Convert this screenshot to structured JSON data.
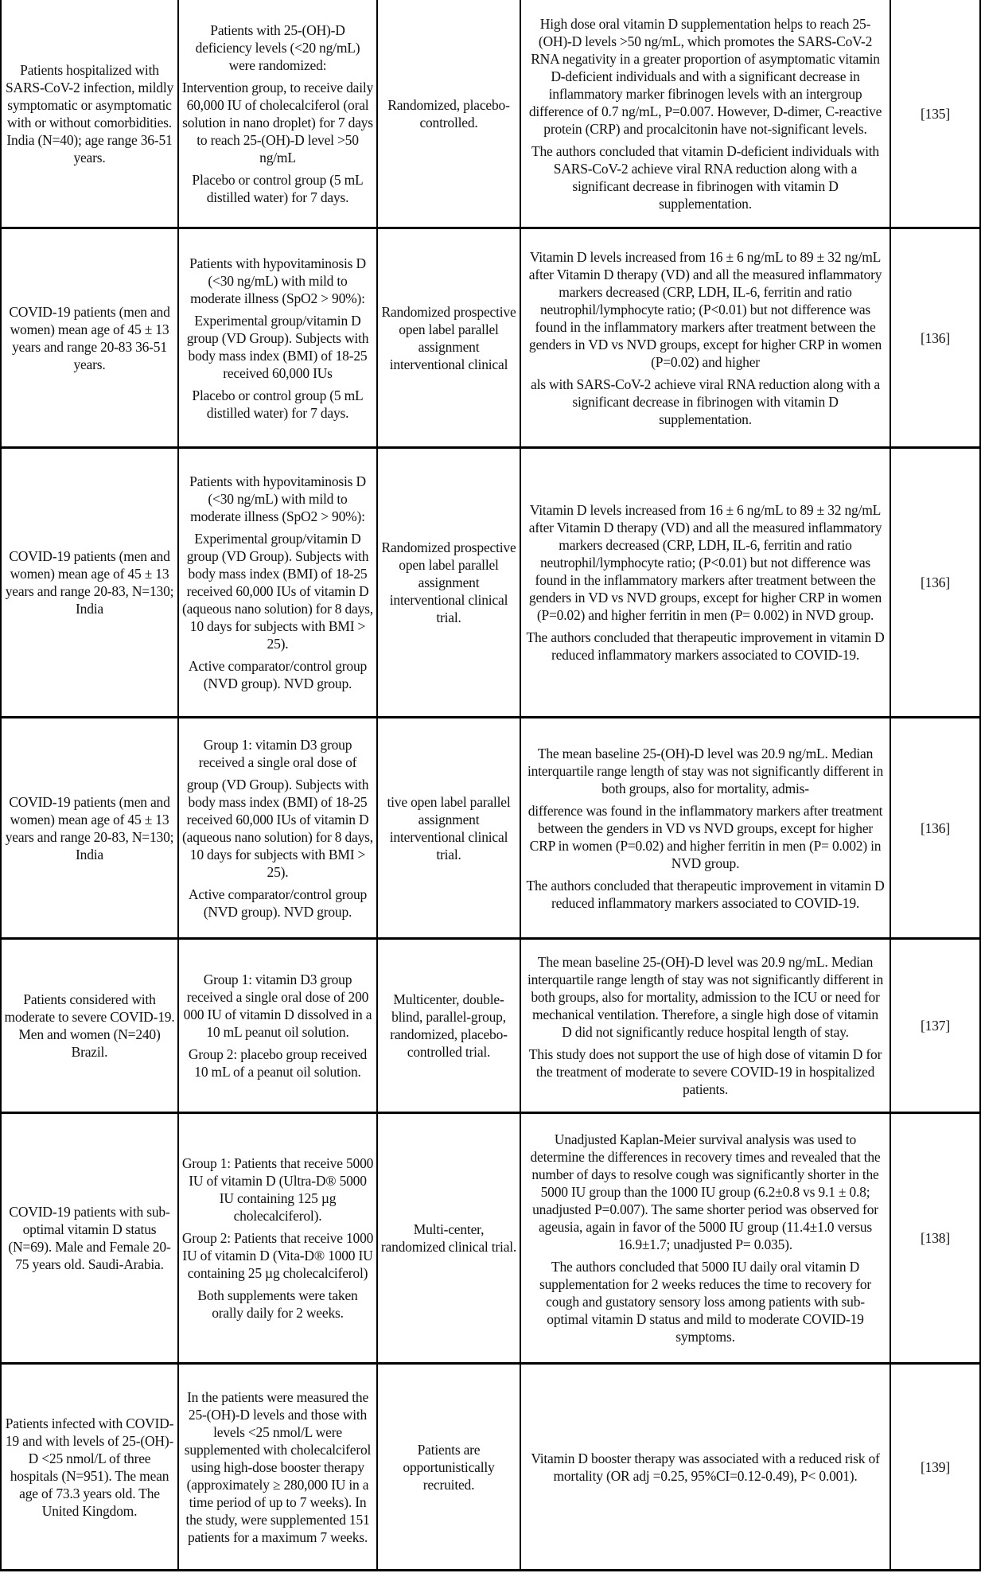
{
  "rows": [
    {
      "population": "Patients hospitalized with SARS-CoV-2 infection, mildly symptomatic or asymptomatic with or without comorbidities. India (N=40); age range 36-51 years.",
      "intervention": [
        "Patients with 25-(OH)-D deficiency levels (<20 ng/mL) were randomized:",
        "Intervention group, to receive daily 60,000 IU of cholecalciferol (oral solution in nano droplet) for 7 days to reach 25-(OH)-D level >50 ng/mL",
        "Placebo or control group (5 mL distilled water) for 7 days."
      ],
      "design": "Randomized, placebo-controlled.",
      "results": [
        "High dose oral vitamin D supplementation helps to reach 25-(OH)-D levels >50 ng/mL, which promotes the SARS-CoV-2 RNA negativity in a greater proportion of asymptomatic vitamin D-deficient individuals and with a significant decrease in inflammatory marker fibrinogen levels with an intergroup difference of 0.7 ng/mL, P=0.007. However, D-dimer, C-reactive protein (CRP) and procalcitonin have not-significant levels.",
        "The authors concluded that vitamin D-deficient individuals with SARS-CoV-2 achieve viral RNA reduction along with a significant decrease in fibrinogen with vitamin D supplementation."
      ],
      "ref": "[135]"
    },
    {
      "population": "COVID-19 patients (men and women) mean age of 45 ± 13 years and range 20-83 36-51 years.",
      "intervention": [
        "Patients with hypovitaminosis D (<30 ng/mL) with mild to moderate illness (SpO2 > 90%):",
        "Experimental group/vitamin D group (VD Group). Subjects with body mass index (BMI) of 18-25 received 60,000 IUs",
        "Placebo or control group (5 mL distilled water) for 7 days."
      ],
      "design": "Randomized prospective open label parallel assignment interventional clinical",
      "results": [
        "Vitamin D levels increased from 16 ± 6 ng/mL to 89 ± 32 ng/mL after Vitamin D therapy (VD) and all the measured inflammatory markers decreased (CRP, LDH, IL-6, ferritin and ratio neutrophil/lymphocyte ratio; (P<0.01) but not difference was found in the inflammatory markers after treatment between the genders in VD vs NVD groups, except for higher CRP in women (P=0.02) and higher",
        "als with SARS-CoV-2 achieve viral RNA reduction along with a significant decrease in fibrinogen with vitamin D supplementation."
      ],
      "ref": "[136]"
    },
    {
      "population": "COVID-19 patients (men and women) mean age of 45 ± 13 years and range 20-83, N=130; India",
      "intervention": [
        "Patients with hypovitaminosis D (<30 ng/mL) with mild to moderate illness (SpO2 > 90%):",
        "Experimental group/vitamin D group (VD Group). Subjects with body mass index (BMI) of 18-25 received 60,000 IUs of vitamin D (aqueous nano solution) for 8 days, 10 days for subjects with BMI > 25).",
        "Active comparator/control group (NVD group). NVD group."
      ],
      "design": "Randomized prospective open label parallel assignment interventional clinical trial.",
      "results": [
        "Vitamin D levels increased from 16 ± 6 ng/mL to 89 ± 32 ng/mL after Vitamin D therapy (VD) and all the measured inflammatory markers decreased (CRP, LDH, IL-6, ferritin and ratio neutrophil/lymphocyte ratio; (P<0.01) but not difference was found in the inflammatory markers after treatment between the genders in VD vs NVD groups, except for higher CRP in women (P=0.02) and higher ferritin in men (P= 0.002) in NVD group.",
        "The authors concluded that therapeutic improvement in vitamin D reduced inflammatory markers associated to COVID-19."
      ],
      "ref": "[136]"
    },
    {
      "population": "COVID-19 patients (men and women) mean age of 45 ± 13 years and range 20-83, N=130; India",
      "intervention": [
        "Group 1: vitamin D3 group received a single oral dose of",
        "group (VD Group). Subjects with body mass index (BMI) of 18-25 received 60,000 IUs of vitamin D (aqueous nano solution) for 8 days, 10 days for subjects with BMI > 25).",
        "Active comparator/control group (NVD group). NVD group."
      ],
      "design": "tive open label parallel assignment interventional clinical trial.",
      "results": [
        "The mean baseline 25-(OH)-D level was 20.9 ng/mL. Median interquartile range length of stay was not significantly different in both groups, also for mortality, admis-",
        "difference was found in the inflammatory markers after treatment between the genders in VD vs NVD groups, except for higher CRP in women (P=0.02) and higher ferritin in men (P= 0.002) in NVD group.",
        "The authors concluded that therapeutic improvement in vitamin D reduced inflammatory markers associated to COVID-19."
      ],
      "ref": "[136]"
    },
    {
      "population": "Patients considered with moderate to severe COVID-19. Men and women (N=240) Brazil.",
      "intervention": [
        "Group 1: vitamin D3 group received a single oral dose of 200 000 IU of vitamin D dissolved in a 10 mL peanut oil solution.",
        "Group 2: placebo group received 10 mL of a peanut oil solution."
      ],
      "design": "Multicenter, double-blind, parallel-group, randomized, placebo-controlled trial.",
      "results": [
        "The mean baseline 25-(OH)-D level was 20.9 ng/mL. Median interquartile range length of stay was not significantly different in both groups, also for mortality, admission to the ICU or need for mechanical ventilation. Therefore, a single high dose of vitamin D did not significantly reduce hospital length of stay.",
        "This study does not support the use of high dose of vitamin D for the treatment of moderate to severe COVID-19 in hospitalized patients."
      ],
      "ref": "[137]"
    },
    {
      "population": "COVID-19 patients with sub-optimal vitamin D status (N=69). Male and Female 20-75 years old. Saudi-Arabia.",
      "intervention": [
        "Group 1: Patients that receive 5000 IU of vitamin D (Ultra-D® 5000 IU containing 125 µg cholecalciferol).",
        "Group 2: Patients that receive 1000 IU of vitamin D (Vita-D® 1000 IU containing 25 µg cholecalciferol)",
        "Both supplements were taken orally daily for 2 weeks."
      ],
      "design": "Multi-center, randomized clinical trial.",
      "results": [
        "Unadjusted Kaplan-Meier survival analysis was used to determine the differences in recovery times and revealed that the number of days to resolve cough was significantly shorter in the 5000 IU group than the 1000 IU group (6.2±0.8 vs 9.1 ± 0.8; unadjusted P=0.007). The same shorter period was observed for ageusia, again in favor of the 5000 IU group (11.4±1.0 versus 16.9±1.7; unadjusted P= 0.035).",
        "The authors concluded that 5000 IU daily oral vitamin D supplementation for 2 weeks reduces the time to recovery for cough and gustatory sensory loss among patients with sub-optimal vitamin D status and mild to moderate COVID-19 symptoms."
      ],
      "ref": "[138]"
    },
    {
      "population": "Patients infected with COVID-19 and with levels of 25-(OH)-D <25 nmol/L of three hospitals (N=951). The mean age of 73.3 years old. The United Kingdom.",
      "intervention": [
        "In the patients were measured the 25-(OH)-D levels and those with levels <25 nmol/L were supplemented with cholecalciferol using high-dose booster therapy (approximately ≥ 280,000 IU in a time period of up to 7 weeks). In the study, were supplemented 151 patients for a maximum 7 weeks."
      ],
      "design": "Patients are opportunistically recruited.",
      "results": [
        "Vitamin D booster therapy was associated with a reduced risk of mortality (OR adj =0.25, 95%CI=0.12-0.49), P< 0.001)."
      ],
      "ref": "[139]"
    }
  ]
}
